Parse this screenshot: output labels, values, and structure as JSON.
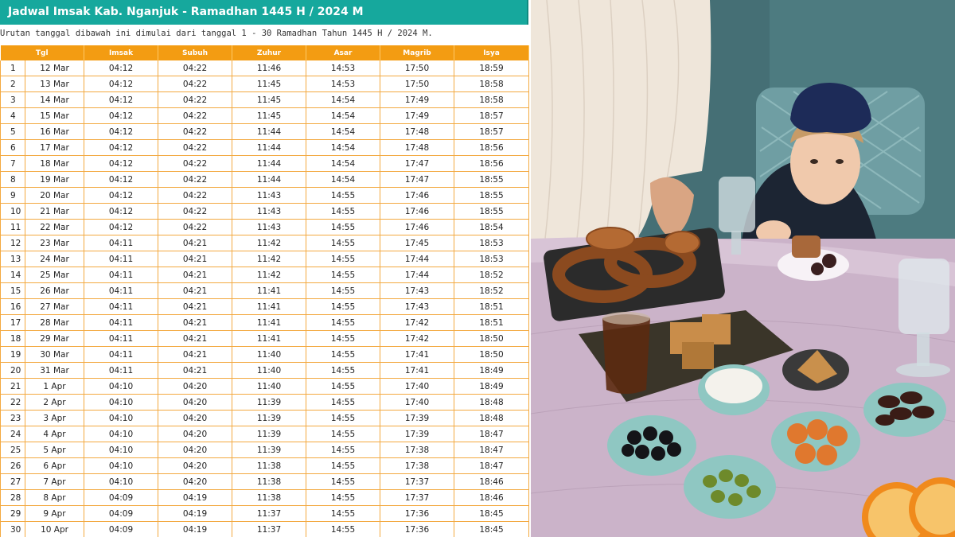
{
  "title": "Jadwal Imsak Kab. Nganjuk - Ramadhan 1445 H / 2024 M",
  "subtitle": "Urutan tanggal dibawah ini dimulai dari tanggal 1 - 30 Ramadhan Tahun 1445 H / 2024 M.",
  "colors": {
    "header_bg": "#16a89d",
    "table_header_bg": "#f39c12",
    "grid_line": "#f3a940"
  },
  "table": {
    "headers": [
      "Tgl",
      "Imsak",
      "Subuh",
      "Zuhur",
      "Asar",
      "Magrib",
      "Isya"
    ],
    "rows": [
      [
        "1",
        "12 Mar",
        "04:12",
        "04:22",
        "11:46",
        "14:53",
        "17:50",
        "18:59"
      ],
      [
        "2",
        "13 Mar",
        "04:12",
        "04:22",
        "11:45",
        "14:53",
        "17:50",
        "18:58"
      ],
      [
        "3",
        "14 Mar",
        "04:12",
        "04:22",
        "11:45",
        "14:54",
        "17:49",
        "18:58"
      ],
      [
        "4",
        "15 Mar",
        "04:12",
        "04:22",
        "11:45",
        "14:54",
        "17:49",
        "18:57"
      ],
      [
        "5",
        "16 Mar",
        "04:12",
        "04:22",
        "11:44",
        "14:54",
        "17:48",
        "18:57"
      ],
      [
        "6",
        "17 Mar",
        "04:12",
        "04:22",
        "11:44",
        "14:54",
        "17:48",
        "18:56"
      ],
      [
        "7",
        "18 Mar",
        "04:12",
        "04:22",
        "11:44",
        "14:54",
        "17:47",
        "18:56"
      ],
      [
        "8",
        "19 Mar",
        "04:12",
        "04:22",
        "11:44",
        "14:54",
        "17:47",
        "18:55"
      ],
      [
        "9",
        "20 Mar",
        "04:12",
        "04:22",
        "11:43",
        "14:55",
        "17:46",
        "18:55"
      ],
      [
        "10",
        "21 Mar",
        "04:12",
        "04:22",
        "11:43",
        "14:55",
        "17:46",
        "18:55"
      ],
      [
        "11",
        "22 Mar",
        "04:12",
        "04:22",
        "11:43",
        "14:55",
        "17:46",
        "18:54"
      ],
      [
        "12",
        "23 Mar",
        "04:11",
        "04:21",
        "11:42",
        "14:55",
        "17:45",
        "18:53"
      ],
      [
        "13",
        "24 Mar",
        "04:11",
        "04:21",
        "11:42",
        "14:55",
        "17:44",
        "18:53"
      ],
      [
        "14",
        "25 Mar",
        "04:11",
        "04:21",
        "11:42",
        "14:55",
        "17:44",
        "18:52"
      ],
      [
        "15",
        "26 Mar",
        "04:11",
        "04:21",
        "11:41",
        "14:55",
        "17:43",
        "18:52"
      ],
      [
        "16",
        "27 Mar",
        "04:11",
        "04:21",
        "11:41",
        "14:55",
        "17:43",
        "18:51"
      ],
      [
        "17",
        "28 Mar",
        "04:11",
        "04:21",
        "11:41",
        "14:55",
        "17:42",
        "18:51"
      ],
      [
        "18",
        "29 Mar",
        "04:11",
        "04:21",
        "11:41",
        "14:55",
        "17:42",
        "18:50"
      ],
      [
        "19",
        "30 Mar",
        "04:11",
        "04:21",
        "11:40",
        "14:55",
        "17:41",
        "18:50"
      ],
      [
        "20",
        "31 Mar",
        "04:11",
        "04:21",
        "11:40",
        "14:55",
        "17:41",
        "18:49"
      ],
      [
        "21",
        "1 Apr",
        "04:10",
        "04:20",
        "11:40",
        "14:55",
        "17:40",
        "18:49"
      ],
      [
        "22",
        "2 Apr",
        "04:10",
        "04:20",
        "11:39",
        "14:55",
        "17:40",
        "18:48"
      ],
      [
        "23",
        "3 Apr",
        "04:10",
        "04:20",
        "11:39",
        "14:55",
        "17:39",
        "18:48"
      ],
      [
        "24",
        "4 Apr",
        "04:10",
        "04:20",
        "11:39",
        "14:55",
        "17:39",
        "18:47"
      ],
      [
        "25",
        "5 Apr",
        "04:10",
        "04:20",
        "11:39",
        "14:55",
        "17:38",
        "18:47"
      ],
      [
        "26",
        "6 Apr",
        "04:10",
        "04:20",
        "11:38",
        "14:55",
        "17:38",
        "18:47"
      ],
      [
        "27",
        "7 Apr",
        "04:10",
        "04:20",
        "11:38",
        "14:55",
        "17:37",
        "18:46"
      ],
      [
        "28",
        "8 Apr",
        "04:09",
        "04:19",
        "11:38",
        "14:55",
        "17:37",
        "18:46"
      ],
      [
        "29",
        "9 Apr",
        "04:09",
        "04:19",
        "11:37",
        "14:55",
        "17:36",
        "18:45"
      ],
      [
        "30",
        "10 Apr",
        "04:09",
        "04:19",
        "11:37",
        "14:55",
        "17:36",
        "18:45"
      ]
    ]
  }
}
